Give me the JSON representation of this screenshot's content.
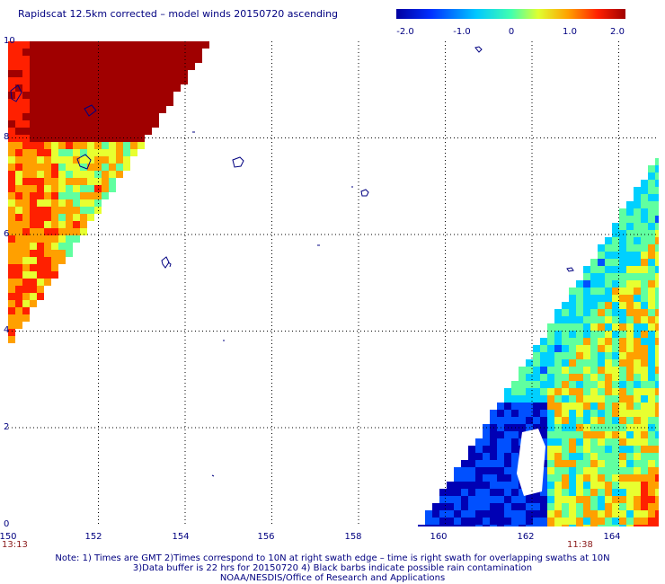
{
  "title": "Rapidscat 12.5km corrected – model winds 20150720 ascending",
  "colorbar": {
    "ticks": [
      "-2.0",
      "-1.0",
      "0",
      "1.0",
      "2.0"
    ],
    "colors": [
      "#0000b4",
      "#0050ff",
      "#00d0ff",
      "#60ffa0",
      "#e8ff30",
      "#ffa000",
      "#ff2000",
      "#a00000"
    ]
  },
  "axes": {
    "lat_labels": [
      "10",
      "8",
      "6",
      "4",
      "2",
      "0"
    ],
    "lon_labels": [
      "150",
      "152",
      "154",
      "156",
      "158",
      "160",
      "162",
      "164"
    ]
  },
  "times": {
    "left": "13:13",
    "right": "11:38"
  },
  "notes": [
    "Note: 1) Times are GMT 2)Times correspond to 10N at right swath edge – time is right swath for overlapping swaths at 10N",
    "3)Data buffer is 22 hrs for 20150720 4) Black barbs indicate possible rain contamination",
    "NOAA/NESDIS/Office of Research and Applications"
  ]
}
